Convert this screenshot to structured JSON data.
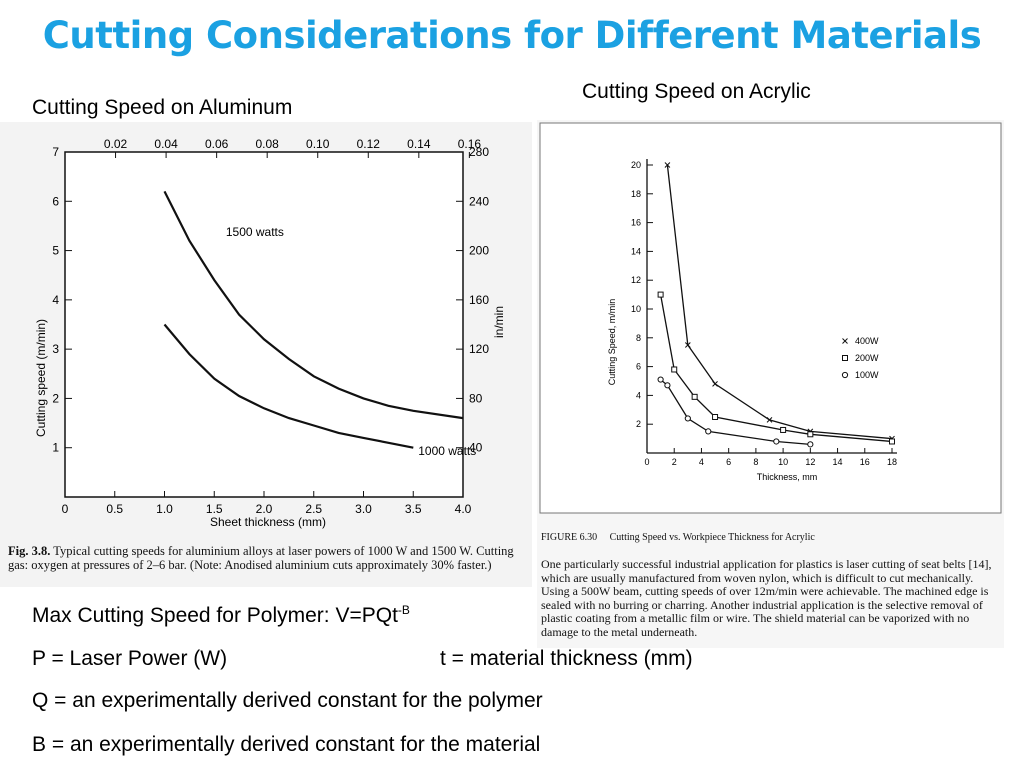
{
  "slide": {
    "title": "Cutting Considerations for Different Materials",
    "aluminum_heading": "Cutting Speed on Aluminum",
    "acrylic_heading": "Cutting Speed on Acrylic",
    "formula_label": "Max Cutting Speed for Polymer: V=PQt",
    "formula_exponent": "-B",
    "def_p": "P = Laser Power (W)",
    "def_t": "t = material thickness (mm)",
    "def_q": "Q = an experimentally derived constant for the polymer",
    "def_b": "B = an experimentally derived constant for the material"
  },
  "aluminum_caption": {
    "fig_label": "Fig. 3.8.",
    "text": "Typical cutting speeds for aluminium alloys at laser powers of 1000 W and 1500 W. Cutting gas: oxygen at pressures of 2–6 bar. (Note: Anodised aluminium cuts approximately 30% faster.)"
  },
  "acrylic_caption": {
    "fig_label": "FIGURE 6.30",
    "title": "Cutting Speed vs. Workpiece Thickness for Acrylic",
    "text": "One particularly successful industrial application for plastics is laser cutting of seat belts [14], which are usually manufactured from woven nylon, which is difficult to cut mechanically. Using a 500W beam, cutting speeds of over 12m/min were achievable. The machined edge is sealed with no burring or charring. Another industrial application is the selective removal of plastic coating from a metallic film or wire. The shield material can be vaporized with no damage to the metal underneath."
  },
  "chart_data": [
    {
      "type": "line",
      "xlabel": "Sheet thickness (mm)",
      "ylabel": "Cutting speed (m/min)",
      "y2label": "in/min",
      "xlim": [
        0,
        4.0
      ],
      "ylim": [
        0,
        7
      ],
      "x_ticks": [
        "0",
        "0.5",
        "1.0",
        "1.5",
        "2.0",
        "2.5",
        "3.0",
        "3.5",
        "4.0"
      ],
      "y_ticks": [
        "1",
        "2",
        "3",
        "4",
        "5",
        "6",
        "7"
      ],
      "x2_ticks": [
        "0.02",
        "0.04",
        "0.06",
        "0.08",
        "0.10",
        "0.12",
        "0.14",
        "0.16"
      ],
      "y2_ticks": [
        "40",
        "80",
        "120",
        "160",
        "200",
        "240",
        "280"
      ],
      "grid": false,
      "series": [
        {
          "name": "1500 watts",
          "x": [
            1.0,
            1.25,
            1.5,
            1.75,
            2.0,
            2.25,
            2.5,
            2.75,
            3.0,
            3.25,
            3.5,
            4.0
          ],
          "y": [
            6.2,
            5.2,
            4.4,
            3.7,
            3.2,
            2.8,
            2.45,
            2.2,
            2.0,
            1.85,
            1.75,
            1.6
          ]
        },
        {
          "name": "1000 watts",
          "x": [
            1.0,
            1.25,
            1.5,
            1.75,
            2.0,
            2.25,
            2.5,
            2.75,
            3.0,
            3.25,
            3.5
          ],
          "y": [
            3.5,
            2.9,
            2.4,
            2.05,
            1.8,
            1.6,
            1.45,
            1.3,
            1.2,
            1.1,
            1.0
          ]
        }
      ]
    },
    {
      "type": "line",
      "xlabel": "Thickness, mm",
      "ylabel": "Cutting Speed, m/min",
      "xlim": [
        0,
        18
      ],
      "ylim": [
        0,
        20
      ],
      "x_ticks": [
        "0",
        "2",
        "4",
        "6",
        "8",
        "10",
        "12",
        "14",
        "16",
        "18"
      ],
      "y_ticks": [
        "2",
        "4",
        "6",
        "8",
        "10",
        "12",
        "14",
        "16",
        "18",
        "20"
      ],
      "grid": false,
      "legend": "right",
      "series": [
        {
          "name": "400W",
          "marker": "x",
          "x": [
            1.5,
            3,
            5,
            9,
            12,
            18
          ],
          "y": [
            20,
            7.5,
            4.8,
            2.3,
            1.5,
            1.0
          ]
        },
        {
          "name": "200W",
          "marker": "square",
          "x": [
            1,
            2,
            3.5,
            5,
            10,
            12,
            18
          ],
          "y": [
            11,
            5.8,
            3.9,
            2.5,
            1.6,
            1.3,
            0.8
          ]
        },
        {
          "name": "100W",
          "marker": "circle",
          "x": [
            1,
            1.5,
            3,
            4.5,
            9.5,
            12
          ],
          "y": [
            5.1,
            4.7,
            2.4,
            1.5,
            0.8,
            0.6
          ]
        }
      ]
    }
  ]
}
